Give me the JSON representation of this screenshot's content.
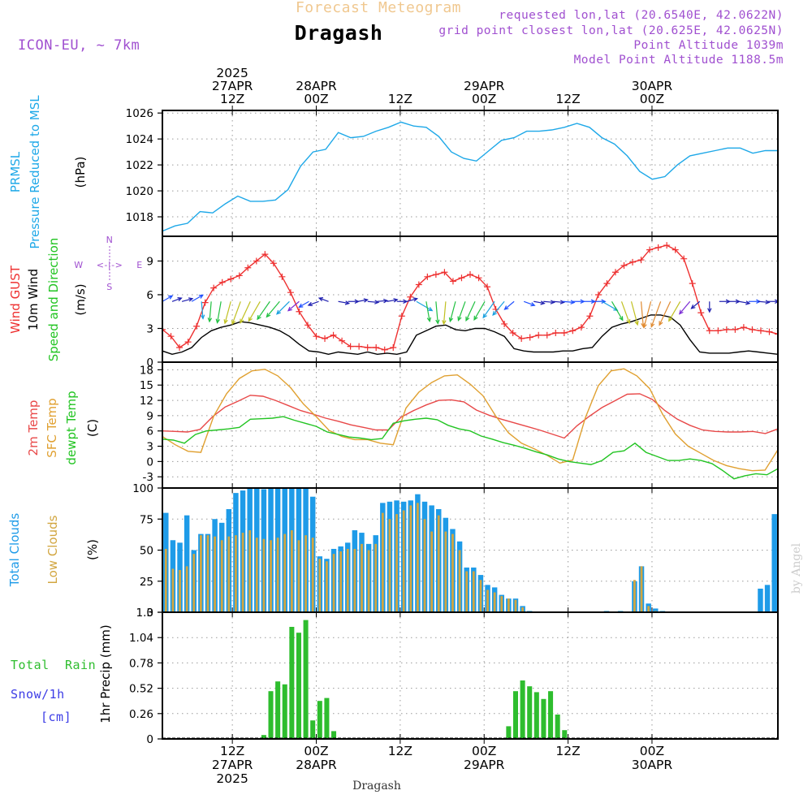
{
  "header": {
    "product_title": "Forecast Meteogram",
    "location": "Dragash",
    "model": "ICON-EU, ~ 7km",
    "requested": "requested lon,lat (20.6540E, 42.0622N)",
    "grid_point": "grid point closest lon,lat (20.625E, 42.0625N)",
    "point_altitude": "Point Altitude 1039m",
    "model_altitude": "Model Point Altitude 1188.5m",
    "footer_location": "Dragash",
    "watermark": "by Angel"
  },
  "top_axis": {
    "labels": [
      {
        "lines": [
          "2025",
          "27APR",
          "12Z"
        ]
      },
      {
        "lines": [
          "28APR",
          "00Z"
        ]
      },
      {
        "lines": [
          "12Z"
        ]
      },
      {
        "lines": [
          "29APR",
          "00Z"
        ]
      },
      {
        "lines": [
          "12Z"
        ]
      },
      {
        "lines": [
          "30APR",
          "00Z"
        ]
      }
    ]
  },
  "bottom_axis": {
    "labels": [
      {
        "lines": [
          "12Z",
          "27APR",
          "2025"
        ]
      },
      {
        "lines": [
          "00Z",
          "28APR"
        ]
      },
      {
        "lines": [
          "12Z"
        ]
      },
      {
        "lines": [
          "00Z",
          "29APR"
        ]
      },
      {
        "lines": [
          "12Z"
        ]
      },
      {
        "lines": [
          "00Z",
          "30APR"
        ]
      }
    ]
  },
  "panel_labels": {
    "pressure": [
      "PRMSL",
      "Pressure Reduced to MSL",
      "(hPa)"
    ],
    "wind": [
      "Wind GUST",
      "10m Wind",
      "Speed and Direction",
      "(m/s)"
    ],
    "compass": {
      "n": "N",
      "s": "S",
      "w": "W",
      "e": "E",
      "arrows": "<-|->"
    },
    "temp": [
      "2m Temp",
      "SFC Temp",
      "dewpt Temp",
      "(C)"
    ],
    "clouds": [
      "Total Clouds",
      "Low Clouds",
      "(%)"
    ],
    "precip": [
      "Total",
      "Rain",
      "Snow/1h",
      "[cm]",
      "1hr Precip (mm)"
    ]
  },
  "colors": {
    "pressure": "#1ea8e8",
    "gust": "#ee3030",
    "wind": "#000000",
    "temp2m": "#e84848",
    "sfc": "#e0a030",
    "dew": "#22c422",
    "total_clouds": "#1e9be8",
    "low_clouds": "#d2a640",
    "rain": "#2ebd2e",
    "snow": "#3c3ce6",
    "compass": "#a050d0",
    "header_title": "#f0c890",
    "header_info": "#a050d0"
  },
  "chart_data": {
    "type": "meteogram",
    "time_axis": "UTC hours from 2025-04-27 00Z (every 2 h)",
    "time_start_utc": 2,
    "time_step_hours": 2,
    "x_ticks": [
      "27APR 12Z",
      "28APR 00Z",
      "28APR 12Z",
      "29APR 00Z",
      "29APR 12Z",
      "30APR 00Z"
    ],
    "panels": [
      {
        "id": "pressure",
        "ylabel": "(hPa)",
        "yticks": [
          1018,
          1020,
          1022,
          1024,
          1026
        ],
        "ylim": [
          1016.5,
          1026.2
        ],
        "series": [
          {
            "name": "PRMSL",
            "color": "#1ea8e8",
            "values": [
              1016.9,
              1017.3,
              1017.5,
              1018.4,
              1018.3,
              1019.0,
              1019.6,
              1019.2,
              1019.2,
              1019.3,
              1020.1,
              1021.9,
              1023.0,
              1023.2,
              1024.5,
              1024.1,
              1024.2,
              1024.6,
              1024.9,
              1025.3,
              1025.0,
              1024.9,
              1024.2,
              1023.0,
              1022.5,
              1022.3,
              1023.1,
              1023.9,
              1024.1,
              1024.6,
              1024.6,
              1024.7,
              1024.9,
              1025.2,
              1024.9,
              1024.1,
              1023.6,
              1022.7,
              1021.5,
              1020.9,
              1021.1,
              1022.0,
              1022.7,
              1022.9,
              1023.1,
              1023.3,
              1023.3,
              1022.9,
              1023.1,
              1023.1
            ]
          }
        ]
      },
      {
        "id": "wind",
        "ylabel": "(m/s)",
        "yticks": [
          0,
          3,
          6,
          9
        ],
        "ylim": [
          0,
          11.2
        ],
        "series": [
          {
            "name": "Wind GUST",
            "color": "#ee3030",
            "values": [
              2.9,
              2.3,
              1.3,
              1.8,
              3.2,
              5.3,
              6.6,
              7.1,
              7.4,
              7.7,
              8.4,
              9.0,
              9.6,
              8.8,
              7.6,
              6.2,
              4.5,
              3.3,
              2.3,
              2.1,
              2.4,
              1.9,
              1.4,
              1.4,
              1.3,
              1.3,
              1.1,
              1.3,
              4.1,
              5.8,
              6.9,
              7.6,
              7.8,
              8.0,
              7.2,
              7.5,
              7.8,
              7.5,
              6.7,
              4.7,
              3.4,
              2.6,
              2.1,
              2.2,
              2.4,
              2.4,
              2.6,
              2.6,
              2.8,
              3.1,
              4.1,
              6.0,
              7.0,
              8.0,
              8.6,
              8.9,
              9.1,
              10.0,
              10.2,
              10.4,
              10.0,
              9.2,
              7.0,
              4.4,
              2.8,
              2.8,
              2.9,
              2.9,
              3.1,
              2.9,
              2.8,
              2.7,
              2.5
            ],
            "xoffset": -0.4
          },
          {
            "name": "10m Wind",
            "color": "#000000",
            "values": [
              1.0,
              0.7,
              0.9,
              1.3,
              2.2,
              2.8,
              3.1,
              3.3,
              3.6,
              3.5,
              3.3,
              3.1,
              2.8,
              2.3,
              1.6,
              1.0,
              0.9,
              0.7,
              0.9,
              0.8,
              0.7,
              0.9,
              0.7,
              0.8,
              0.7,
              0.9,
              2.4,
              2.8,
              3.2,
              3.3,
              2.9,
              2.8,
              3.0,
              3.0,
              2.7,
              2.3,
              1.2,
              1.0,
              0.9,
              0.9,
              0.9,
              1.0,
              1.0,
              1.2,
              1.3,
              2.3,
              3.1,
              3.4,
              3.6,
              3.9,
              4.2,
              4.2,
              4.0,
              3.3,
              2.0,
              0.9,
              0.8,
              0.8,
              0.8,
              0.9,
              1.0,
              0.9,
              0.8,
              0.7
            ],
            "xoffset": 0
          }
        ]
      },
      {
        "id": "temp",
        "ylabel": "(C)",
        "yticks": [
          -3,
          0,
          3,
          6,
          9,
          12,
          15,
          18
        ],
        "ylim": [
          -5.2,
          19.5
        ],
        "series": [
          {
            "name": "2m Temp",
            "color": "#e84848",
            "values": [
              6.0,
              5.9,
              5.8,
              6.3,
              8.8,
              10.7,
              11.8,
              13.0,
              12.8,
              12.0,
              11.0,
              10.0,
              9.3,
              8.5,
              7.9,
              7.2,
              6.7,
              6.2,
              6.2,
              8.7,
              10.0,
              11.1,
              12.0,
              12.1,
              11.7,
              10.1,
              9.1,
              8.3,
              7.6,
              6.9,
              6.2,
              5.4,
              4.6,
              7.0,
              8.9,
              10.6,
              11.9,
              13.2,
              13.3,
              12.2,
              10.0,
              8.3,
              7.1,
              6.2,
              5.9,
              5.8,
              5.8,
              5.9,
              5.5,
              6.4
            ]
          },
          {
            "name": "SFC Temp",
            "color": "#e0a030",
            "values": [
              4.9,
              3.3,
              2.0,
              1.8,
              8.9,
              13.3,
              16.3,
              17.8,
              18.1,
              16.8,
              14.5,
              11.3,
              8.8,
              6.1,
              4.9,
              4.3,
              4.3,
              3.6,
              3.3,
              10.5,
              13.6,
              15.5,
              16.8,
              17.0,
              15.2,
              12.9,
              8.9,
              5.6,
              3.6,
              2.5,
              1.2,
              -0.3,
              0.3,
              8.7,
              14.9,
              17.8,
              18.2,
              16.8,
              14.3,
              9.3,
              5.4,
              3.0,
              1.6,
              0.2,
              -0.8,
              -1.4,
              -1.8,
              -1.7,
              2.3
            ]
          },
          {
            "name": "dewpt Temp",
            "color": "#22c422",
            "values": [
              4.4,
              4.2,
              3.6,
              5.3,
              6.0,
              6.2,
              6.4,
              6.7,
              8.3,
              8.4,
              8.5,
              8.8,
              8.1,
              7.5,
              6.9,
              5.8,
              5.3,
              4.8,
              4.6,
              4.3,
              4.5,
              7.5,
              8.0,
              8.3,
              8.5,
              8.2,
              7.1,
              6.4,
              6.0,
              5.0,
              4.4,
              3.7,
              3.2,
              2.6,
              1.9,
              1.3,
              0.5,
              0.0,
              -0.3,
              -0.6,
              0.2,
              1.8,
              2.1,
              3.6,
              1.8,
              1.0,
              0.2,
              0.2,
              0.5,
              0.2,
              -0.4,
              -1.8,
              -3.4,
              -2.8,
              -2.4,
              -2.6,
              -1.4
            ]
          }
        ]
      },
      {
        "id": "clouds",
        "ylabel": "(%)",
        "yticks": [
          0,
          25,
          50,
          75,
          100
        ],
        "ylim": [
          0,
          100
        ],
        "series": [
          {
            "name": "Total Clouds",
            "color": "#1e9be8",
            "values": [
              80,
              58,
              56,
              78,
              50,
              63,
              63,
              75,
              72,
              83,
              96,
              98,
              100,
              100,
              99,
              100,
              100,
              100,
              100,
              100,
              100,
              93,
              45,
              43,
              51,
              53,
              56,
              66,
              64,
              55,
              62,
              88,
              89,
              90,
              89,
              90,
              95,
              89,
              86,
              83,
              76,
              67,
              57,
              36,
              36,
              30,
              22,
              20,
              14,
              11,
              11,
              5,
              1,
              0,
              0,
              0,
              0,
              0,
              0,
              0,
              0,
              0,
              0,
              1,
              0,
              1,
              0,
              25,
              37,
              7,
              3,
              1,
              0,
              0,
              0,
              0,
              0,
              0,
              0,
              0,
              0,
              0,
              0,
              0,
              0,
              19,
              22,
              79
            ],
            "bar_width": 0.75
          },
          {
            "name": "Low Clouds",
            "color": "#d2a640",
            "values": [
              51,
              35,
              34,
              37,
              47,
              62,
              62,
              61,
              58,
              61,
              62,
              64,
              66,
              60,
              59,
              58,
              60,
              63,
              66,
              58,
              62,
              60,
              43,
              41,
              47,
              49,
              51,
              51,
              55,
              50,
              55,
              80,
              75,
              79,
              82,
              86,
              88,
              75,
              65,
              78,
              65,
              63,
              50,
              33,
              33,
              26,
              18,
              16,
              13,
              11,
              10,
              4,
              0,
              0,
              0,
              0,
              0,
              0,
              0,
              0,
              0,
              0,
              0,
              0,
              0,
              0,
              0,
              26,
              37,
              5,
              1,
              0,
              0,
              0,
              0,
              0,
              0,
              0,
              0,
              0,
              0,
              0,
              0,
              0,
              0,
              0,
              0,
              0
            ],
            "bar_width": 0.32
          }
        ]
      },
      {
        "id": "precip",
        "ylabel": "1hr Precip (mm)",
        "yticks": [
          0,
          0.26,
          0.52,
          0.78,
          1.04,
          1.3
        ],
        "ylim": [
          0,
          1.3
        ],
        "series": [
          {
            "name": "Rain",
            "color": "#2ebd2e",
            "values": [
              0,
              0,
              0,
              0,
              0,
              0,
              0,
              0,
              0,
              0,
              0,
              0,
              0,
              0,
              0.04,
              0.49,
              0.59,
              0.56,
              1.15,
              1.09,
              1.22,
              0.19,
              0.39,
              0.42,
              0.08,
              0,
              0,
              0,
              0,
              0,
              0,
              0,
              0,
              0,
              0,
              0,
              0,
              0,
              0,
              0,
              0,
              0,
              0,
              0,
              0,
              0,
              0,
              0,
              0,
              0.13,
              0.49,
              0.6,
              0.54,
              0.48,
              0.41,
              0.49,
              0.25,
              0.09,
              0,
              0,
              0,
              0,
              0,
              0,
              0,
              0,
              0,
              0,
              0,
              0,
              0,
              0,
              0,
              0,
              0,
              0,
              0,
              0,
              0,
              0,
              0,
              0,
              0,
              0,
              0,
              0,
              0,
              0
            ]
          },
          {
            "name": "Snow/1h",
            "color": "#3c3ce6",
            "values": []
          }
        ]
      }
    ]
  }
}
